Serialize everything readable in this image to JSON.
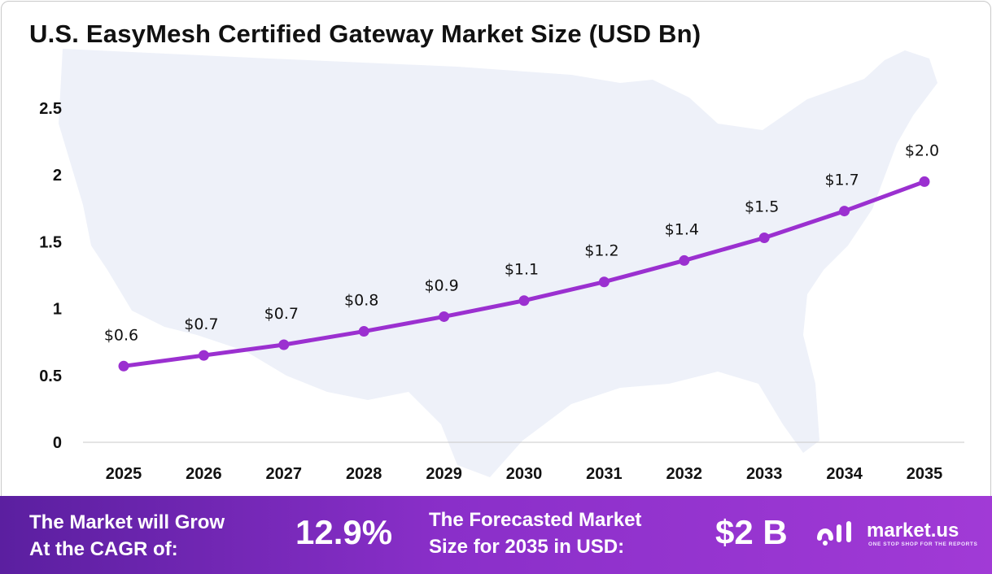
{
  "title": "U.S. EasyMesh Certified Gateway Market Size (USD Bn)",
  "colors": {
    "line": "#9b30d0",
    "map": "#eef1f9",
    "banner_start": "#5b1fa0",
    "banner_end": "#a13ad6"
  },
  "chart_data": {
    "type": "line",
    "title": "U.S. EasyMesh Certified Gateway Market Size (USD Bn)",
    "categories": [
      "2025",
      "2026",
      "2027",
      "2028",
      "2029",
      "2030",
      "2031",
      "2032",
      "2033",
      "2034",
      "2035"
    ],
    "values": [
      0.57,
      0.65,
      0.73,
      0.83,
      0.94,
      1.06,
      1.2,
      1.36,
      1.53,
      1.73,
      1.95
    ],
    "data_labels": [
      "$0.6",
      "$0.7",
      "$0.7",
      "$0.8",
      "$0.9",
      "$1.1",
      "$1.2",
      "$1.4",
      "$1.5",
      "$1.7",
      "$2.0"
    ],
    "y_ticks": [
      "0",
      "0.5",
      "1",
      "1.5",
      "2",
      "2.5"
    ],
    "ylim": [
      0,
      2.5
    ],
    "xlabel": "",
    "ylabel": "",
    "grid": false,
    "legend": "none"
  },
  "banner": {
    "cagr_label_line1": "The Market will Grow",
    "cagr_label_line2": "At the CAGR of:",
    "cagr_value": "12.9%",
    "forecast_label_line1": "The Forecasted Market",
    "forecast_label_line2": "Size for 2035 in USD:",
    "forecast_value": "$2 B"
  },
  "logo": {
    "name": "market.us",
    "tagline": "ONE STOP SHOP FOR THE REPORTS",
    "icon": "market-us-logo-icon"
  }
}
